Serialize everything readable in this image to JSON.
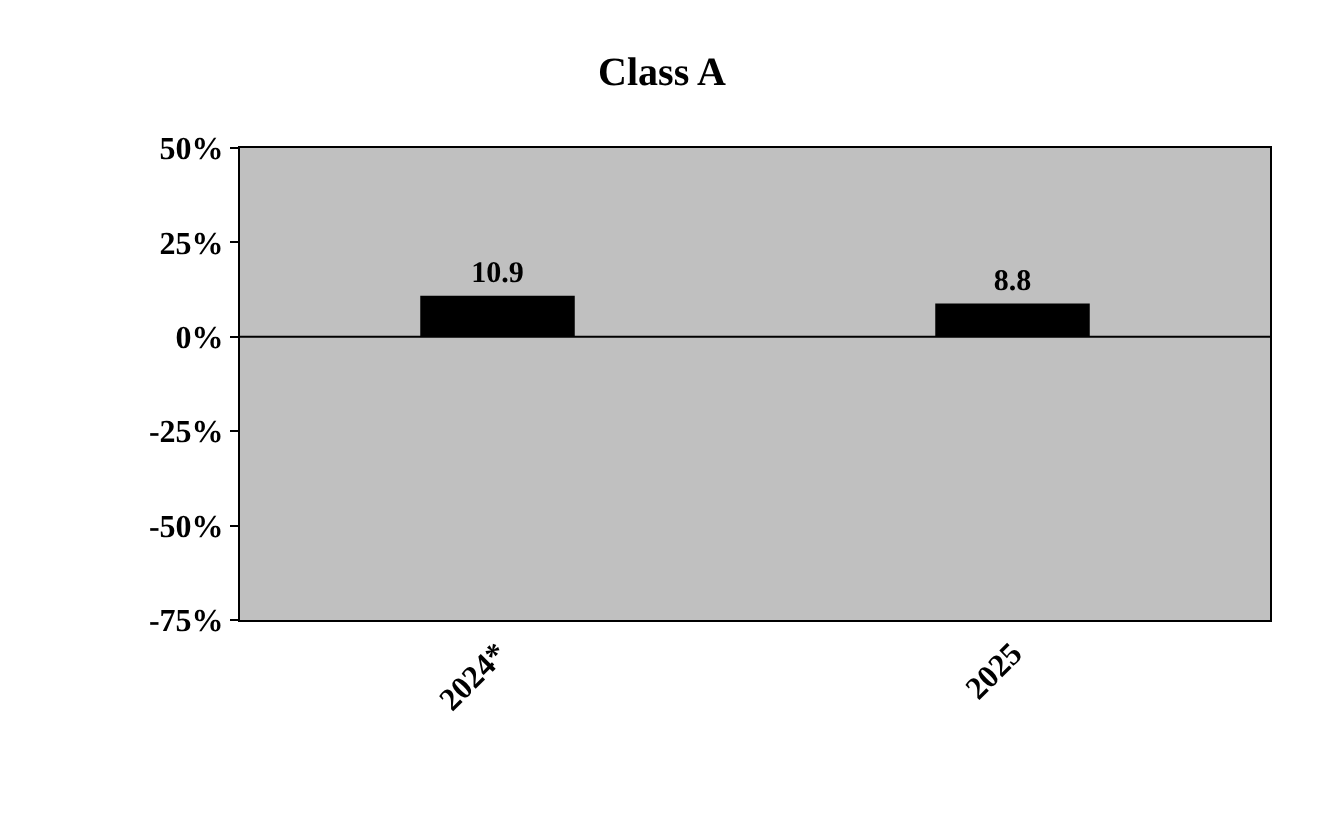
{
  "chart_data": {
    "type": "bar",
    "title": "Class A",
    "categories": [
      "2024*",
      "2025"
    ],
    "values": [
      10.9,
      8.8
    ],
    "color": "#000000",
    "data_labels": true,
    "ylim": [
      -75,
      50
    ],
    "yticks": [
      {
        "value": -75,
        "label": "-75%"
      },
      {
        "value": -50,
        "label": "-50%"
      },
      {
        "value": -25,
        "label": "-25%"
      },
      {
        "value": 0,
        "label": "0%"
      },
      {
        "value": 25,
        "label": "25%"
      },
      {
        "value": 50,
        "label": "50%"
      }
    ],
    "ref_lines": [
      {
        "axis": "y",
        "value": 0,
        "color": "#000000",
        "line_style": "solid"
      }
    ],
    "grid": false
  }
}
